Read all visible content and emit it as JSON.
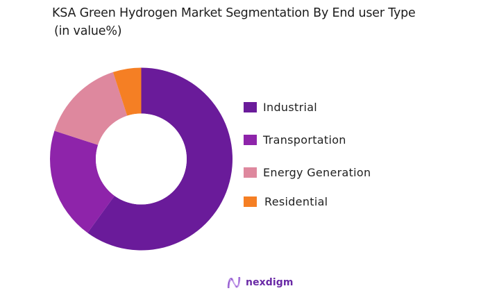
{
  "header": {
    "title": "KSA Green Hydrogen Market Segmentation By End user Type",
    "subtitle": "(in value%)"
  },
  "legend": {
    "items": [
      {
        "label": "Industrial",
        "color": "#6a1b9a"
      },
      {
        "label": "Transportation",
        "color": "#8e24aa"
      },
      {
        "label": "Energy Generation",
        "color": "#de889e"
      },
      {
        "label": "Residential",
        "color": "#f57f24"
      }
    ]
  },
  "brand": {
    "name": "nexdigm",
    "icon": "nexdigm-wave-logo-icon"
  },
  "chart_data": {
    "type": "pie",
    "variant": "donut",
    "title": "KSA Green Hydrogen Market Segmentation By End user Type",
    "subtitle": "(in value%)",
    "categories": [
      "Industrial",
      "Transportation",
      "Energy Generation",
      "Residential"
    ],
    "values": [
      60,
      20,
      15,
      5
    ],
    "unit": "%",
    "colors": [
      "#6a1b9a",
      "#8e24aa",
      "#de889e",
      "#f57f24"
    ],
    "start_angle": "top (12 o'clock), clockwise",
    "legend_position": "right",
    "data_labels": false
  }
}
